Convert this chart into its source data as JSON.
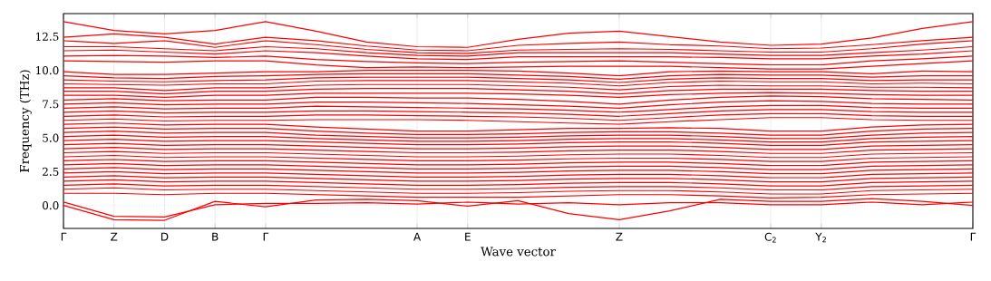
{
  "chart_data": {
    "type": "line",
    "xlabel": "Wave vector",
    "ylabel": "Frequency (THz)",
    "categories": [
      "Γ",
      "Z",
      "D",
      "B",
      "Γ",
      null,
      null,
      "A",
      "E",
      null,
      null,
      "Z",
      null,
      null,
      "C$_{2}$",
      "Y$_{2}$",
      null,
      null,
      "Γ"
    ],
    "ylim": [
      -1.7,
      14.2
    ],
    "yticks": [
      {
        "value": 0,
        "label": "0.0"
      },
      2.5,
      {
        "value": 5,
        "label": "5.0"
      },
      7.5,
      {
        "value": 10,
        "label": "10.0"
      },
      12.5
    ],
    "grid": "x",
    "marker": "none",
    "line_style": "solid",
    "ref_lines": [
      {
        "axis": "y",
        "value": 0,
        "color": "#7777ff",
        "line_style": "dotted"
      }
    ],
    "series": [
      {
        "color": "#ff0000",
        "values": [
          0,
          -1.05,
          -1.1,
          0.3,
          -0.1,
          0.4,
          0.45,
          0.35,
          -0.05,
          0.35,
          -0.6,
          -1.05,
          -0.4,
          0.45,
          0.3,
          0.3,
          0.5,
          0.3,
          0
        ]
      },
      {
        "color": "#ff0000",
        "values": [
          0.25,
          -0.8,
          -0.85,
          0.05,
          0.15,
          0.15,
          0.2,
          0.1,
          0.25,
          0.1,
          0.2,
          0.05,
          0.2,
          0.2,
          0.05,
          0.05,
          0.25,
          0.05,
          0.25
        ]
      },
      {
        "color": "#ff0000",
        "values": [
          13.6,
          12.95,
          12.7,
          12.95,
          13.6,
          12.9,
          12.1,
          11.75,
          11.7,
          12.3,
          12.75,
          12.9,
          12.5,
          12.1,
          11.85,
          11.95,
          12.4,
          13.1,
          13.6
        ]
      },
      {
        "color": "#ff0000",
        "values": [
          12.45,
          12.7,
          12.45,
          11.95,
          12.45,
          12.2,
          11.8,
          11.5,
          11.45,
          11.85,
          12.0,
          12.1,
          11.9,
          11.8,
          11.6,
          11.65,
          11.9,
          12.2,
          12.45
        ]
      },
      {
        "color": "#ff0000",
        "values": [
          12.2,
          12.0,
          12.2,
          11.7,
          12.2,
          11.9,
          11.55,
          11.3,
          11.25,
          11.5,
          11.55,
          11.6,
          11.55,
          11.45,
          11.35,
          11.35,
          11.6,
          11.95,
          12.2
        ]
      },
      {
        "color": "#ff0000",
        "values": [
          11.75,
          11.75,
          11.6,
          11.45,
          11.75,
          11.6,
          11.3,
          11.1,
          11.05,
          11.3,
          11.3,
          11.3,
          11.3,
          11.2,
          11.1,
          11.1,
          11.3,
          11.5,
          11.75
        ]
      },
      {
        "color": "#ff0000",
        "values": [
          11.45,
          11.5,
          11.35,
          11.2,
          11.45,
          11.3,
          11.05,
          10.85,
          10.8,
          11.0,
          11.0,
          11.0,
          11.0,
          10.95,
          10.85,
          10.85,
          11.05,
          11.2,
          11.45
        ]
      },
      {
        "color": "#ff0000",
        "values": [
          11.05,
          11.1,
          11.05,
          10.95,
          11.05,
          10.8,
          10.65,
          10.55,
          10.5,
          10.6,
          10.65,
          10.7,
          10.6,
          10.5,
          10.4,
          10.4,
          10.7,
          10.85,
          11.05
        ]
      },
      {
        "color": "#ff0000",
        "values": [
          10.7,
          10.65,
          10.6,
          10.7,
          10.7,
          10.4,
          10.2,
          10.25,
          10.2,
          10.25,
          10.3,
          10.3,
          10.3,
          10.2,
          10.1,
          10.1,
          10.3,
          10.5,
          10.7
        ]
      },
      {
        "color": "#ff0000",
        "values": [
          9.9,
          9.7,
          9.7,
          9.8,
          9.9,
          9.9,
          10.0,
          10.0,
          10.0,
          9.95,
          9.8,
          9.6,
          9.9,
          9.95,
          9.9,
          9.9,
          9.75,
          9.95,
          9.9
        ]
      },
      {
        "color": "#ff0000",
        "values": [
          9.6,
          9.45,
          9.4,
          9.55,
          9.6,
          9.7,
          9.75,
          9.75,
          9.75,
          9.65,
          9.55,
          9.35,
          9.6,
          9.7,
          9.65,
          9.65,
          9.5,
          9.6,
          9.6
        ]
      },
      {
        "color": "#ff0000",
        "values": [
          9.3,
          9.2,
          9.15,
          9.25,
          9.3,
          9.45,
          9.5,
          9.5,
          9.5,
          9.4,
          9.3,
          9.1,
          9.35,
          9.45,
          9.4,
          9.4,
          9.25,
          9.3,
          9.3
        ]
      },
      {
        "color": "#ff0000",
        "values": [
          9.0,
          8.95,
          8.9,
          9.0,
          9.0,
          9.2,
          9.25,
          9.25,
          9.25,
          9.15,
          9.05,
          8.85,
          9.1,
          9.2,
          9.15,
          9.15,
          9.0,
          9.05,
          9.0
        ]
      },
      {
        "color": "#ff0000",
        "values": [
          8.7,
          8.7,
          8.5,
          8.7,
          8.7,
          8.9,
          8.95,
          8.95,
          8.95,
          8.85,
          8.75,
          8.55,
          8.8,
          8.9,
          8.85,
          8.85,
          8.75,
          8.75,
          8.7
        ]
      },
      {
        "color": "#ff0000",
        "values": [
          8.45,
          8.45,
          8.25,
          8.45,
          8.45,
          8.6,
          8.65,
          8.65,
          8.65,
          8.55,
          8.45,
          8.25,
          8.5,
          8.6,
          8.6,
          8.6,
          8.5,
          8.45,
          8.45
        ]
      },
      {
        "color": "#ff0000",
        "values": [
          8.15,
          8.15,
          8.0,
          8.15,
          8.15,
          8.3,
          8.3,
          8.3,
          8.3,
          8.25,
          8.15,
          8.0,
          8.2,
          8.3,
          8.35,
          8.3,
          8.2,
          8.15,
          8.15
        ]
      },
      {
        "color": "#ff0000",
        "values": [
          7.8,
          7.9,
          7.75,
          7.8,
          7.8,
          8.0,
          8.0,
          7.95,
          7.95,
          7.85,
          7.7,
          7.5,
          7.8,
          8.0,
          8.1,
          8.05,
          7.9,
          7.85,
          7.8
        ]
      },
      {
        "color": "#ff0000",
        "values": [
          7.5,
          7.6,
          7.45,
          7.5,
          7.5,
          7.65,
          7.65,
          7.6,
          7.55,
          7.45,
          7.35,
          7.2,
          7.45,
          7.65,
          7.75,
          7.7,
          7.55,
          7.5,
          7.5
        ]
      },
      {
        "color": "#ff0000",
        "values": [
          7.2,
          7.3,
          7.15,
          7.2,
          7.2,
          7.35,
          7.3,
          7.25,
          7.2,
          7.15,
          7.05,
          6.9,
          7.1,
          7.3,
          7.4,
          7.4,
          7.25,
          7.2,
          7.2
        ]
      },
      {
        "color": "#ff0000",
        "values": [
          6.9,
          7.0,
          6.85,
          6.9,
          6.9,
          7.0,
          7.0,
          6.95,
          6.9,
          6.85,
          6.75,
          6.6,
          6.8,
          7.0,
          7.1,
          7.1,
          6.95,
          6.9,
          6.9
        ]
      },
      {
        "color": "#ff0000",
        "values": [
          6.6,
          6.7,
          6.55,
          6.6,
          6.6,
          6.7,
          6.7,
          6.65,
          6.6,
          6.55,
          6.45,
          6.3,
          6.5,
          6.7,
          6.8,
          6.8,
          6.65,
          6.6,
          6.6
        ]
      },
      {
        "color": "#ff0000",
        "values": [
          6.3,
          6.4,
          6.25,
          6.3,
          6.3,
          6.35,
          6.35,
          6.35,
          6.3,
          6.2,
          6.1,
          6.0,
          6.2,
          6.35,
          6.5,
          6.5,
          6.35,
          6.3,
          6.3
        ]
      },
      {
        "color": "#ff0000",
        "values": [
          6.0,
          6.1,
          5.95,
          6.0,
          6.0,
          5.8,
          5.65,
          5.5,
          5.5,
          5.6,
          5.7,
          5.7,
          5.75,
          5.7,
          5.5,
          5.5,
          5.8,
          5.95,
          6.0
        ]
      },
      {
        "color": "#ff0000",
        "values": [
          5.7,
          5.8,
          5.65,
          5.7,
          5.7,
          5.5,
          5.35,
          5.25,
          5.25,
          5.3,
          5.4,
          5.45,
          5.45,
          5.35,
          5.2,
          5.2,
          5.5,
          5.65,
          5.7
        ]
      },
      {
        "color": "#ff0000",
        "values": [
          5.4,
          5.5,
          5.35,
          5.4,
          5.4,
          5.2,
          5.1,
          5.0,
          5.0,
          5.05,
          5.15,
          5.2,
          5.2,
          5.1,
          4.95,
          4.95,
          5.2,
          5.35,
          5.4
        ]
      },
      {
        "color": "#ff0000",
        "values": [
          5.1,
          5.2,
          5.05,
          5.1,
          5.1,
          4.95,
          4.85,
          4.75,
          4.75,
          4.8,
          4.9,
          4.95,
          4.95,
          4.85,
          4.7,
          4.7,
          4.95,
          5.05,
          5.1
        ]
      },
      {
        "color": "#ff0000",
        "values": [
          4.8,
          4.9,
          4.75,
          4.8,
          4.8,
          4.7,
          4.6,
          4.5,
          4.5,
          4.55,
          4.65,
          4.7,
          4.7,
          4.6,
          4.45,
          4.45,
          4.7,
          4.75,
          4.8
        ]
      },
      {
        "color": "#ff0000",
        "values": [
          4.5,
          4.6,
          4.45,
          4.5,
          4.5,
          4.4,
          4.3,
          4.2,
          4.2,
          4.25,
          4.35,
          4.4,
          4.4,
          4.3,
          4.15,
          4.15,
          4.4,
          4.45,
          4.5
        ]
      },
      {
        "color": "#ff0000",
        "values": [
          4.2,
          4.3,
          4.15,
          4.2,
          4.2,
          4.1,
          4.0,
          3.9,
          3.9,
          3.95,
          4.05,
          4.1,
          4.1,
          4.0,
          3.85,
          3.85,
          4.1,
          4.15,
          4.2
        ]
      },
      {
        "color": "#ff0000",
        "values": [
          3.9,
          4.0,
          3.85,
          3.9,
          3.9,
          3.8,
          3.7,
          3.6,
          3.6,
          3.65,
          3.75,
          3.8,
          3.8,
          3.7,
          3.55,
          3.55,
          3.8,
          3.85,
          3.9
        ]
      },
      {
        "color": "#ff0000",
        "values": [
          3.6,
          3.7,
          3.55,
          3.6,
          3.6,
          3.5,
          3.4,
          3.3,
          3.3,
          3.35,
          3.45,
          3.5,
          3.5,
          3.4,
          3.25,
          3.25,
          3.5,
          3.55,
          3.6
        ]
      },
      {
        "color": "#ff0000",
        "values": [
          3.3,
          3.4,
          3.25,
          3.3,
          3.3,
          3.2,
          3.1,
          3.0,
          3.0,
          3.05,
          3.15,
          3.2,
          3.2,
          3.1,
          2.95,
          2.95,
          3.2,
          3.25,
          3.3
        ]
      },
      {
        "color": "#ff0000",
        "values": [
          3.0,
          3.1,
          2.95,
          3.0,
          3.0,
          2.9,
          2.8,
          2.7,
          2.7,
          2.75,
          2.85,
          2.9,
          2.9,
          2.8,
          2.65,
          2.65,
          2.9,
          2.95,
          3.0
        ]
      },
      {
        "color": "#ff0000",
        "values": [
          2.7,
          2.8,
          2.65,
          2.7,
          2.7,
          2.6,
          2.5,
          2.4,
          2.4,
          2.45,
          2.55,
          2.6,
          2.6,
          2.5,
          2.35,
          2.35,
          2.6,
          2.65,
          2.7
        ]
      },
      {
        "color": "#ff0000",
        "values": [
          2.4,
          2.5,
          2.35,
          2.4,
          2.4,
          2.3,
          2.2,
          2.1,
          2.1,
          2.15,
          2.25,
          2.3,
          2.3,
          2.2,
          2.05,
          2.05,
          2.3,
          2.35,
          2.4
        ]
      },
      {
        "color": "#ff0000",
        "values": [
          2.1,
          2.2,
          2.05,
          2.1,
          2.1,
          2.0,
          1.9,
          1.8,
          1.8,
          1.85,
          1.95,
          2.0,
          2.0,
          1.9,
          1.75,
          1.75,
          2.0,
          2.05,
          2.1
        ]
      },
      {
        "color": "#ff0000",
        "values": [
          1.8,
          1.9,
          1.75,
          1.8,
          1.8,
          1.7,
          1.6,
          1.5,
          1.5,
          1.55,
          1.65,
          1.7,
          1.7,
          1.6,
          1.45,
          1.45,
          1.7,
          1.75,
          1.8
        ]
      },
      {
        "color": "#ff0000",
        "values": [
          1.5,
          1.6,
          1.45,
          1.5,
          1.5,
          1.4,
          1.3,
          1.2,
          1.2,
          1.25,
          1.35,
          1.4,
          1.4,
          1.3,
          1.15,
          1.15,
          1.4,
          1.45,
          1.5
        ]
      },
      {
        "color": "#ff0000",
        "values": [
          1.2,
          1.3,
          1.15,
          1.2,
          1.2,
          1.1,
          1.0,
          0.9,
          0.9,
          0.95,
          1.05,
          1.1,
          1.1,
          1.0,
          0.85,
          0.85,
          1.1,
          1.15,
          1.2
        ]
      },
      {
        "color": "#ff0000",
        "values": [
          0.9,
          0.9,
          0.8,
          0.9,
          0.9,
          0.8,
          0.7,
          0.6,
          0.6,
          0.6,
          0.7,
          0.8,
          0.8,
          0.7,
          0.55,
          0.6,
          0.8,
          0.85,
          0.9
        ]
      }
    ]
  }
}
